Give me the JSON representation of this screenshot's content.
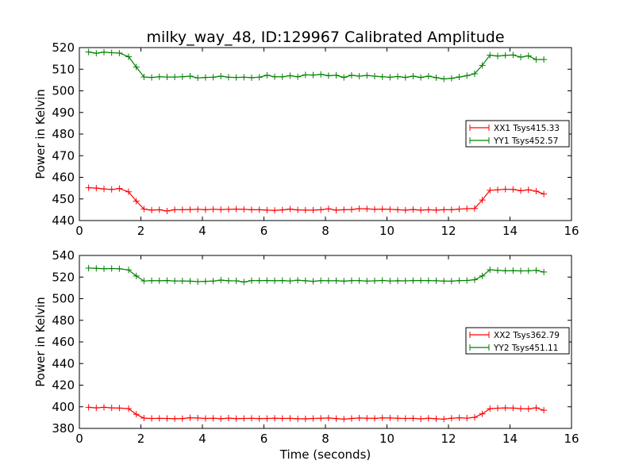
{
  "chart_data": [
    {
      "type": "line",
      "title": "milky_way_48, ID:129967 Calibrated Amplitude",
      "xlabel": "",
      "ylabel": "Power in Kelvin",
      "xlim": [
        0,
        16
      ],
      "ylim": [
        440,
        520
      ],
      "xticks": [
        0,
        2,
        4,
        6,
        8,
        10,
        12,
        14,
        16
      ],
      "yticks": [
        440,
        450,
        460,
        470,
        480,
        490,
        500,
        510,
        520
      ],
      "legend_position": "center-right",
      "grid": false,
      "marker": "+",
      "x": [
        0.3,
        0.55,
        0.8,
        1.05,
        1.3,
        1.6,
        1.85,
        2.1,
        2.35,
        2.6,
        2.85,
        3.1,
        3.35,
        3.6,
        3.85,
        4.1,
        4.35,
        4.6,
        4.85,
        5.1,
        5.35,
        5.6,
        5.85,
        6.1,
        6.35,
        6.6,
        6.85,
        7.1,
        7.35,
        7.6,
        7.85,
        8.1,
        8.35,
        8.6,
        8.85,
        9.1,
        9.35,
        9.6,
        9.85,
        10.1,
        10.35,
        10.6,
        10.85,
        11.1,
        11.35,
        11.6,
        11.85,
        12.1,
        12.35,
        12.6,
        12.85,
        13.1,
        13.35,
        13.6,
        13.85,
        14.1,
        14.35,
        14.6,
        14.85,
        15.1
      ],
      "series": [
        {
          "name": "XX1 Tsys415.33",
          "color": "#ff0000",
          "values": [
            455.2,
            455,
            454.6,
            454.4,
            454.8,
            453.3,
            449,
            445.3,
            444.8,
            445,
            444.4,
            445,
            445,
            445.1,
            445.2,
            445,
            445.2,
            445.1,
            445.2,
            445.3,
            445.2,
            445,
            445,
            444.8,
            444.7,
            444.9,
            445.3,
            444.9,
            444.8,
            444.8,
            445,
            445.4,
            444.8,
            445,
            445.1,
            445.5,
            445.4,
            445.2,
            445.3,
            445.2,
            445,
            444.8,
            445.1,
            444.8,
            445,
            444.8,
            445,
            445,
            445.3,
            445.5,
            445.6,
            449.5,
            454,
            454.2,
            454.5,
            454.4,
            453.8,
            454.2,
            453.6,
            452.3
          ]
        },
        {
          "name": "YY1 Tsys452.57",
          "color": "#008000",
          "values": [
            518,
            517.4,
            517.9,
            517.6,
            517.5,
            515.8,
            511,
            506.4,
            506.2,
            506.5,
            506.4,
            506.4,
            506.5,
            506.8,
            506,
            506.2,
            506.3,
            506.8,
            506.3,
            506.2,
            506.3,
            506.1,
            506.3,
            507.2,
            506.5,
            506.5,
            507,
            506.5,
            507.4,
            507.3,
            507.6,
            507,
            507.2,
            506.2,
            507.2,
            506.8,
            507.1,
            506.8,
            506.5,
            506.3,
            506.6,
            506.2,
            506.8,
            506.2,
            506.8,
            506.1,
            505.5,
            505.8,
            506.4,
            507,
            507.9,
            511.8,
            516.5,
            516.1,
            516.4,
            516.6,
            515.6,
            516.2,
            514.5,
            514.5
          ]
        }
      ]
    },
    {
      "type": "line",
      "title": "",
      "xlabel": "Time (seconds)",
      "ylabel": "Power in Kelvin",
      "xlim": [
        0,
        16
      ],
      "ylim": [
        380,
        540
      ],
      "xticks": [
        0,
        2,
        4,
        6,
        8,
        10,
        12,
        14,
        16
      ],
      "yticks": [
        380,
        400,
        420,
        440,
        460,
        480,
        500,
        520,
        540
      ],
      "legend_position": "center-right",
      "grid": false,
      "marker": "+",
      "x": [
        0.3,
        0.55,
        0.8,
        1.05,
        1.3,
        1.6,
        1.85,
        2.1,
        2.35,
        2.6,
        2.85,
        3.1,
        3.35,
        3.6,
        3.85,
        4.1,
        4.35,
        4.6,
        4.85,
        5.1,
        5.35,
        5.6,
        5.85,
        6.1,
        6.35,
        6.6,
        6.85,
        7.1,
        7.35,
        7.6,
        7.85,
        8.1,
        8.35,
        8.6,
        8.85,
        9.1,
        9.35,
        9.6,
        9.85,
        10.1,
        10.35,
        10.6,
        10.85,
        11.1,
        11.35,
        11.6,
        11.85,
        12.1,
        12.35,
        12.6,
        12.85,
        13.1,
        13.35,
        13.6,
        13.85,
        14.1,
        14.35,
        14.6,
        14.85,
        15.1
      ],
      "series": [
        {
          "name": "XX2 Tsys362.79",
          "color": "#ff0000",
          "values": [
            399.5,
            399,
            399.5,
            399,
            398.8,
            398.3,
            393,
            389.5,
            389.2,
            389.3,
            389.2,
            389,
            389.1,
            389.8,
            389.6,
            389.2,
            389.4,
            389,
            389.5,
            389.1,
            389.2,
            389.3,
            389.1,
            389.2,
            389.4,
            389.2,
            389.3,
            388.9,
            388.9,
            389.2,
            389.4,
            389.6,
            389.1,
            388.6,
            389.2,
            389.6,
            389.4,
            389.3,
            389.7,
            389.6,
            389.4,
            389.2,
            389.3,
            388.8,
            389.4,
            388.9,
            388.6,
            389.4,
            389.8,
            389.5,
            390.2,
            393.5,
            398.3,
            398.7,
            398.9,
            398.8,
            398.3,
            398.1,
            399,
            396.8
          ]
        },
        {
          "name": "YY2 Tsys451.11",
          "color": "#008000",
          "values": [
            528.3,
            528.1,
            527.7,
            527.9,
            527.7,
            526.6,
            521,
            516.4,
            516.7,
            516.6,
            516.8,
            516.4,
            516.4,
            516.2,
            515.8,
            516.1,
            516.3,
            517.2,
            516.6,
            516.5,
            515.4,
            516.7,
            516.7,
            516.8,
            516.6,
            516.8,
            516.4,
            517.1,
            516.6,
            516.1,
            516.7,
            516.6,
            516.6,
            516.2,
            516.7,
            516.7,
            516.3,
            516.5,
            516.9,
            516.4,
            516.6,
            516.5,
            516.7,
            516.8,
            516.7,
            516.6,
            516.3,
            516.2,
            516.7,
            516.9,
            517.5,
            521,
            526.8,
            526.2,
            525.8,
            526,
            525.7,
            525.8,
            526.2,
            524.7
          ]
        }
      ]
    }
  ]
}
